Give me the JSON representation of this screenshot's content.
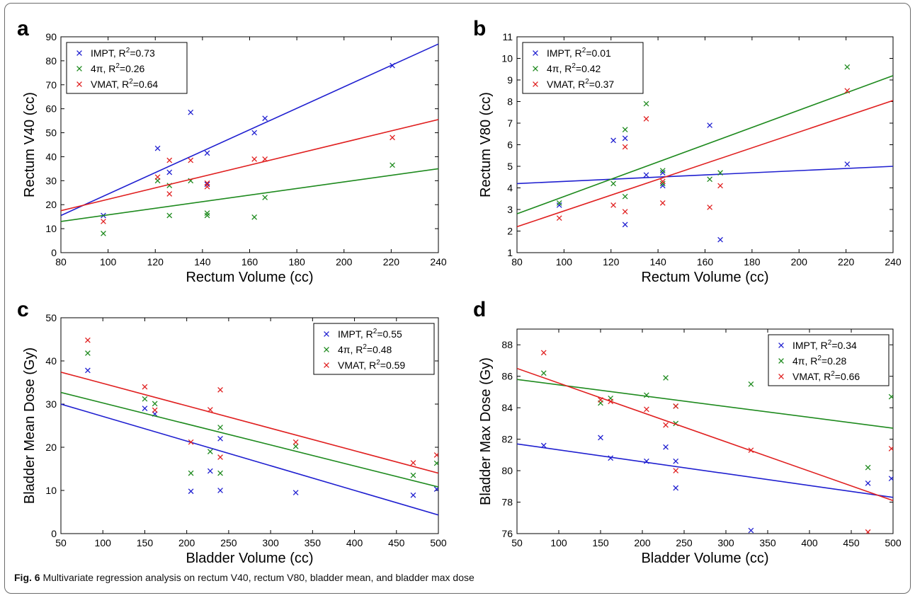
{
  "figure": {
    "caption_label": "Fig. 6",
    "caption_text": "Multivariate regression analysis on rectum V40, rectum V80, bladder mean, and bladder max dose"
  },
  "colors": {
    "IMPT": "#1f1fd0",
    "4pi": "#1e8a1e",
    "VMAT": "#e02020"
  },
  "chart_data": [
    {
      "panel": "a",
      "type": "scatter",
      "xlabel": "Rectum Volume (cc)",
      "ylabel": "Rectum V40 (cc)",
      "xlim": [
        80,
        240
      ],
      "ylim": [
        0,
        90
      ],
      "xticks": [
        80,
        100,
        120,
        140,
        160,
        180,
        200,
        220,
        240
      ],
      "yticks": [
        0,
        10,
        20,
        30,
        40,
        50,
        60,
        70,
        80,
        90
      ],
      "legend_position": "top-left",
      "series": [
        {
          "name": "IMPT",
          "r2": "0.73",
          "color": "#1f1fd0",
          "x": [
            98,
            121,
            126,
            135,
            142,
            142,
            162,
            166.5,
            220.5
          ],
          "y": [
            15.5,
            43.5,
            33.5,
            58.5,
            41.5,
            28.5,
            50,
            56,
            78
          ],
          "fit": [
            [
              80,
              15.5
            ],
            [
              240,
              87
            ]
          ]
        },
        {
          "name": "4π",
          "r2": "0.26",
          "color": "#1e8a1e",
          "x": [
            98,
            121,
            126,
            126,
            135,
            142,
            142,
            162,
            166.5,
            220.5
          ],
          "y": [
            8,
            30,
            28,
            15.5,
            30,
            16.5,
            15.5,
            14.8,
            23,
            36.5
          ],
          "fit": [
            [
              80,
              13
            ],
            [
              240,
              35
            ]
          ]
        },
        {
          "name": "VMAT",
          "r2": "0.64",
          "color": "#e02020",
          "x": [
            98,
            121,
            126,
            126,
            135,
            142,
            142,
            162,
            166.5,
            220.5
          ],
          "y": [
            13,
            31.5,
            38.5,
            24.5,
            38.5,
            29,
            27.5,
            39,
            39,
            48
          ],
          "fit": [
            [
              80,
              17.5
            ],
            [
              240,
              55.5
            ]
          ]
        }
      ]
    },
    {
      "panel": "b",
      "type": "scatter",
      "xlabel": "Rectum Volume (cc)",
      "ylabel": "Rectum V80 (cc)",
      "xlim": [
        80,
        240
      ],
      "ylim": [
        1,
        11
      ],
      "xticks": [
        80,
        100,
        120,
        140,
        160,
        180,
        200,
        220,
        240
      ],
      "yticks": [
        1,
        2,
        3,
        4,
        5,
        6,
        7,
        8,
        9,
        10,
        11
      ],
      "legend_position": "top-left",
      "series": [
        {
          "name": "IMPT",
          "r2": "0.01",
          "color": "#1f1fd0",
          "x": [
            98,
            121,
            126,
            126,
            135,
            142,
            142,
            162,
            166.5,
            220.5
          ],
          "y": [
            3.2,
            6.2,
            6.3,
            2.3,
            4.6,
            4.7,
            4.1,
            6.9,
            1.6,
            5.1
          ],
          "fit": [
            [
              80,
              4.2
            ],
            [
              240,
              5
            ]
          ]
        },
        {
          "name": "4π",
          "r2": "0.42",
          "color": "#1e8a1e",
          "x": [
            98,
            121,
            126,
            126,
            135,
            142,
            142,
            162,
            166.5,
            220.5
          ],
          "y": [
            3.3,
            4.2,
            6.7,
            3.6,
            7.9,
            4.8,
            4.2,
            4.4,
            4.7,
            9.6
          ],
          "fit": [
            [
              80,
              2.8
            ],
            [
              240,
              9.2
            ]
          ]
        },
        {
          "name": "VMAT",
          "r2": "0.37",
          "color": "#e02020",
          "x": [
            98,
            121,
            126,
            126,
            135,
            142,
            142,
            162,
            166.5,
            220.5
          ],
          "y": [
            2.6,
            3.2,
            5.9,
            2.9,
            7.2,
            4.3,
            3.3,
            3.1,
            4.1,
            8.5
          ],
          "fit": [
            [
              80,
              2.2
            ],
            [
              240,
              8.05
            ]
          ]
        }
      ]
    },
    {
      "panel": "c",
      "type": "scatter",
      "xlabel": "Bladder Volume (cc)",
      "ylabel": "Bladder Mean Dose (Gy)",
      "xlim": [
        50,
        500
      ],
      "ylim": [
        0,
        50
      ],
      "xticks": [
        50,
        100,
        150,
        200,
        250,
        300,
        350,
        400,
        450,
        500
      ],
      "yticks": [
        0,
        10,
        20,
        30,
        40,
        50
      ],
      "legend_position": "top-right",
      "series": [
        {
          "name": "IMPT",
          "r2": "0.55",
          "color": "#1f1fd0",
          "x": [
            82,
            150,
            162,
            205,
            228,
            240,
            240,
            330,
            470,
            498
          ],
          "y": [
            37.8,
            29,
            27.7,
            9.8,
            14.5,
            22,
            10,
            9.5,
            8.9,
            10.3
          ],
          "fit": [
            [
              50,
              30
            ],
            [
              500,
              4.3
            ]
          ]
        },
        {
          "name": "4π",
          "r2": "0.48",
          "color": "#1e8a1e",
          "x": [
            82,
            150,
            162,
            205,
            228,
            240,
            240,
            330,
            470,
            498
          ],
          "y": [
            41.8,
            31.2,
            30.1,
            14,
            19,
            24.6,
            14,
            20.2,
            13.5,
            16.3
          ],
          "fit": [
            [
              50,
              32.7
            ],
            [
              500,
              10.8
            ]
          ]
        },
        {
          "name": "VMAT",
          "r2": "0.59",
          "color": "#e02020",
          "x": [
            82,
            150,
            162,
            205,
            228,
            240,
            240,
            330,
            470,
            498
          ],
          "y": [
            44.8,
            34,
            28.6,
            21.2,
            28.7,
            33.3,
            17.7,
            21.2,
            16.4,
            18.2
          ],
          "fit": [
            [
              50,
              37.4
            ],
            [
              500,
              14
            ]
          ]
        }
      ]
    },
    {
      "panel": "d",
      "type": "scatter",
      "xlabel": "Bladder Volume (cc)",
      "ylabel": "Bladder Max Dose (Gy)",
      "xlim": [
        50,
        500
      ],
      "ylim": [
        76,
        89
      ],
      "xticks": [
        50,
        100,
        150,
        200,
        250,
        300,
        350,
        400,
        450,
        500
      ],
      "yticks": [
        76,
        78,
        80,
        82,
        84,
        86,
        88
      ],
      "legend_position": "top-right",
      "series": [
        {
          "name": "IMPT",
          "r2": "0.34",
          "color": "#1f1fd0",
          "x": [
            82,
            150,
            162,
            205,
            228,
            240,
            240,
            330,
            470,
            498
          ],
          "y": [
            81.6,
            82.1,
            80.8,
            80.6,
            81.5,
            80.6,
            78.9,
            76.2,
            79.2,
            79.5
          ],
          "fit": [
            [
              50,
              81.7
            ],
            [
              500,
              78.3
            ]
          ]
        },
        {
          "name": "4π",
          "r2": "0.28",
          "color": "#1e8a1e",
          "x": [
            82,
            150,
            162,
            205,
            228,
            240,
            240,
            330,
            470,
            498
          ],
          "y": [
            86.2,
            84.3,
            84.6,
            84.8,
            85.9,
            83,
            84.1,
            85.5,
            80.2,
            84.7
          ],
          "fit": [
            [
              50,
              85.8
            ],
            [
              500,
              82.7
            ]
          ]
        },
        {
          "name": "VMAT",
          "r2": "0.66",
          "color": "#e02020",
          "x": [
            82,
            150,
            162,
            205,
            228,
            240,
            240,
            330,
            470,
            498
          ],
          "y": [
            87.5,
            84.5,
            84.4,
            83.9,
            82.9,
            84.1,
            80,
            81.3,
            76.1,
            81.4
          ],
          "fit": [
            [
              50,
              86.5
            ],
            [
              500,
              78.1
            ]
          ]
        }
      ]
    }
  ]
}
